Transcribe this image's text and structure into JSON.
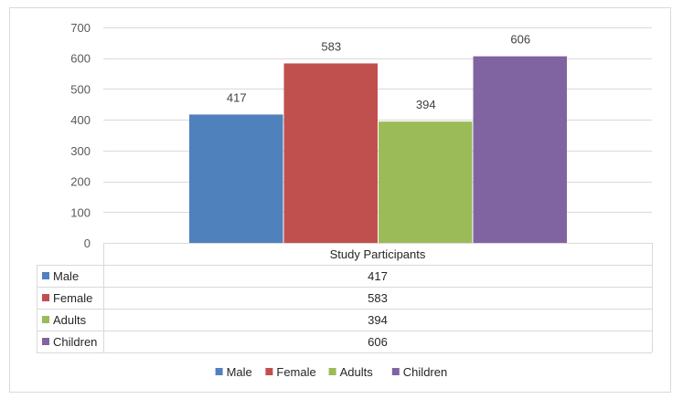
{
  "chart_data": {
    "type": "bar",
    "categories": [
      "Study Participants"
    ],
    "series": [
      {
        "name": "Male",
        "values": [
          417
        ],
        "color": "#4F81BD"
      },
      {
        "name": "Female",
        "values": [
          583
        ],
        "color": "#C0504D"
      },
      {
        "name": "Adults",
        "values": [
          394
        ],
        "color": "#9BBB59"
      },
      {
        "name": "Children",
        "values": [
          606
        ],
        "color": "#8064A2"
      }
    ],
    "ylim": [
      0,
      700
    ],
    "yticks": [
      0,
      100,
      200,
      300,
      400,
      500,
      600,
      700
    ],
    "grid": true,
    "data_table": true,
    "legend_position": "bottom"
  }
}
